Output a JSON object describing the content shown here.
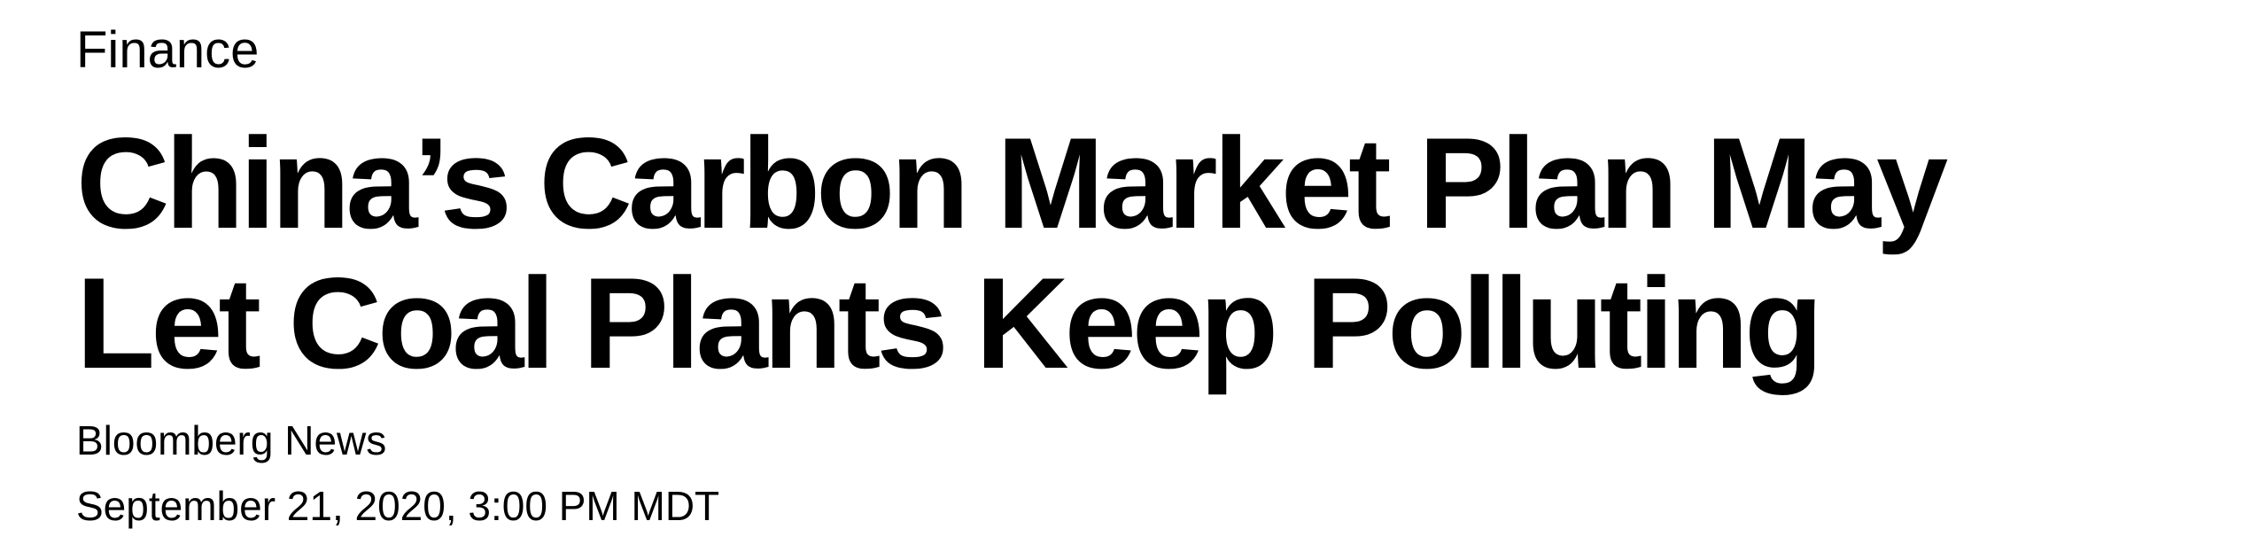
{
  "article": {
    "section": "Finance",
    "headline_line1": "China’s Carbon Market Plan May",
    "headline_line2": "Let Coal Plants Keep Polluting",
    "byline": "Bloomberg News",
    "timestamp": "September 21, 2020, 3:00 PM MDT"
  }
}
